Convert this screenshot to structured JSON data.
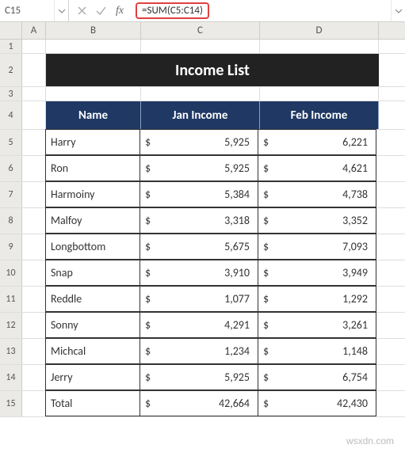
{
  "formulaBar": {
    "cellRef": "C15",
    "formula": "=SUM(C5:C14)"
  },
  "columns": [
    "A",
    "B",
    "C",
    "D"
  ],
  "title": "Income List",
  "headers": {
    "name": "Name",
    "jan": "Jan Income",
    "feb": "Feb Income"
  },
  "rows": [
    {
      "num": "5",
      "name": "Harry",
      "jan": "5,925",
      "feb": "6,221"
    },
    {
      "num": "6",
      "name": "Ron",
      "jan": "5,925",
      "feb": "4,621"
    },
    {
      "num": "7",
      "name": "Harmoiny",
      "jan": "5,384",
      "feb": "4,738"
    },
    {
      "num": "8",
      "name": "Malfoy",
      "jan": "3,318",
      "feb": "3,352"
    },
    {
      "num": "9",
      "name": "Longbottom",
      "jan": "5,675",
      "feb": "7,093"
    },
    {
      "num": "10",
      "name": "Snap",
      "jan": "3,910",
      "feb": "3,949"
    },
    {
      "num": "11",
      "name": "Reddle",
      "jan": "1,077",
      "feb": "1,292"
    },
    {
      "num": "12",
      "name": "Sonny",
      "jan": "4,291",
      "feb": "3,261"
    },
    {
      "num": "13",
      "name": "Michcal",
      "jan": "1,234",
      "feb": "1,148"
    },
    {
      "num": "14",
      "name": "Jerry",
      "jan": "5,925",
      "feb": "6,754"
    }
  ],
  "total": {
    "num": "15",
    "label": "Total",
    "jan": "42,664",
    "feb": "42,430"
  },
  "currency": "$",
  "watermark": "wsxdn.com",
  "colors": {
    "titleBg": "#222222",
    "headerBg": "#1f3864",
    "formulaHighlight": "#e04040",
    "gridHeaderBg": "#eceae6"
  }
}
